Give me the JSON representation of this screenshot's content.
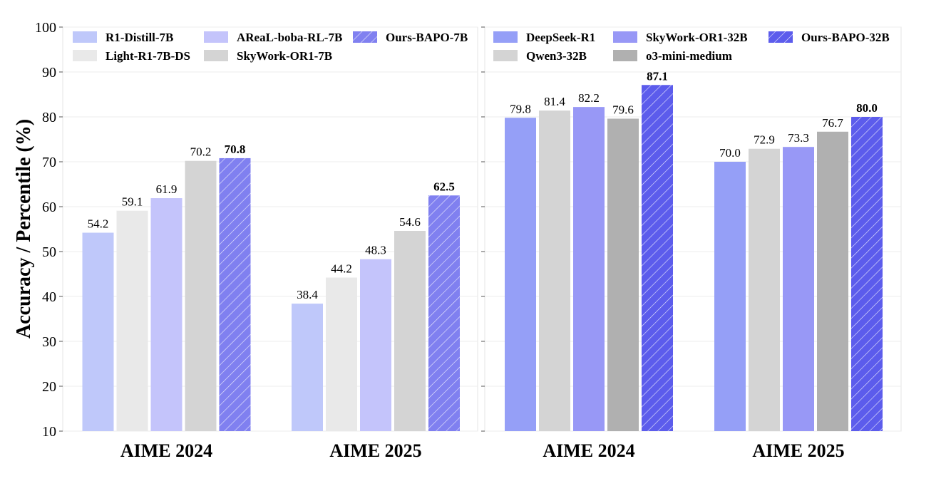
{
  "chart_data": [
    {
      "type": "bar",
      "categories": [
        "AIME 2024",
        "AIME 2025"
      ],
      "ylabel": "Accuracy / Percentile (%)",
      "ylim": [
        10,
        100
      ],
      "yticks": [
        10,
        20,
        30,
        40,
        50,
        60,
        70,
        80,
        90,
        100
      ],
      "grid": true,
      "legend_position": "top",
      "series": [
        {
          "name": "R1-Distill-7B",
          "values": [
            54.2,
            38.4
          ],
          "labels": [
            "54.2",
            "38.4"
          ],
          "color": "#bfc8fa",
          "hatch": false,
          "bold": false
        },
        {
          "name": "Light-R1-7B-DS",
          "values": [
            59.1,
            44.2
          ],
          "labels": [
            "59.1",
            "44.2"
          ],
          "color": "#e9e9e9",
          "hatch": false,
          "bold": false
        },
        {
          "name": "AReaL-boba-RL-7B",
          "values": [
            61.9,
            48.3
          ],
          "labels": [
            "61.9",
            "48.3"
          ],
          "color": "#c4c4fb",
          "hatch": false,
          "bold": false
        },
        {
          "name": "SkyWork-OR1-7B",
          "values": [
            70.2,
            54.6
          ],
          "labels": [
            "70.2",
            "54.6"
          ],
          "color": "#d4d4d4",
          "hatch": false,
          "bold": false
        },
        {
          "name": "Ours-BAPO-7B",
          "values": [
            70.8,
            62.5
          ],
          "labels": [
            "70.8",
            "62.5"
          ],
          "color": "#8080f0",
          "hatch": true,
          "bold": true
        }
      ],
      "legend_order": [
        "R1-Distill-7B",
        "AReaL-boba-RL-7B",
        "Ours-BAPO-7B",
        "Light-R1-7B-DS",
        "SkyWork-OR1-7B"
      ]
    },
    {
      "type": "bar",
      "categories": [
        "AIME 2024",
        "AIME 2025"
      ],
      "ylim": [
        10,
        100
      ],
      "grid": true,
      "legend_position": "top",
      "series": [
        {
          "name": "DeepSeek-R1",
          "values": [
            79.8,
            70.0
          ],
          "labels": [
            "79.8",
            "70.0"
          ],
          "color": "#959ff7",
          "hatch": false,
          "bold": false
        },
        {
          "name": "Qwen3-32B",
          "values": [
            81.4,
            72.9
          ],
          "labels": [
            "81.4",
            "72.9"
          ],
          "color": "#d4d4d4",
          "hatch": false,
          "bold": false
        },
        {
          "name": "SkyWork-OR1-32B",
          "values": [
            82.2,
            73.3
          ],
          "labels": [
            "82.2",
            "73.3"
          ],
          "color": "#9898f6",
          "hatch": false,
          "bold": false
        },
        {
          "name": "o3-mini-medium",
          "values": [
            79.6,
            76.7
          ],
          "labels": [
            "79.6",
            "76.7"
          ],
          "color": "#b0b0b0",
          "hatch": false,
          "bold": false
        },
        {
          "name": "Ours-BAPO-32B",
          "values": [
            87.1,
            80.0
          ],
          "labels": [
            "87.1",
            "80.0"
          ],
          "color": "#5c5cec",
          "hatch": true,
          "bold": true
        }
      ],
      "legend_order": [
        "DeepSeek-R1",
        "SkyWork-OR1-32B",
        "Ours-BAPO-32B",
        "Qwen3-32B",
        "o3-mini-medium"
      ]
    }
  ]
}
